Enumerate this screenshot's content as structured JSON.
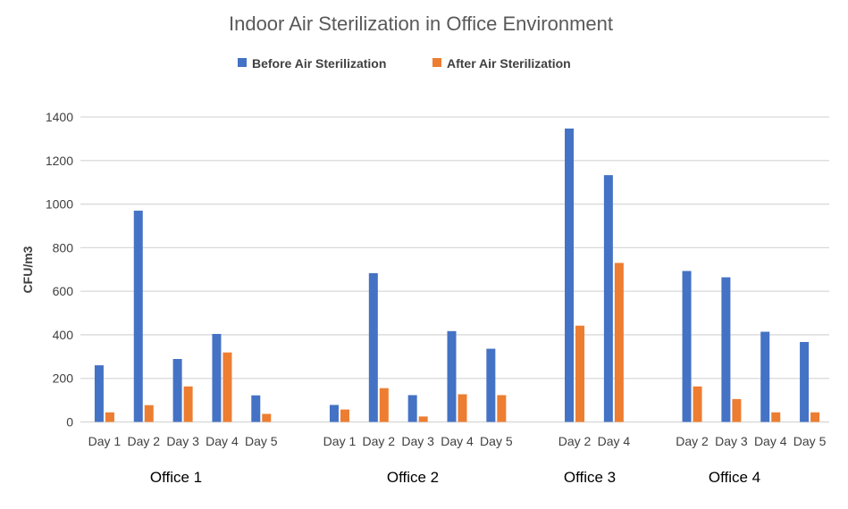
{
  "chart_data": {
    "type": "bar",
    "title": "Indoor Air Sterilization in Office Environment",
    "ylabel": "CFU/m3",
    "xlabel": "",
    "ylim": [
      0,
      1400
    ],
    "yticks": [
      0,
      200,
      400,
      600,
      800,
      1000,
      1200,
      1400
    ],
    "grid": true,
    "legend_position": "top",
    "colors": {
      "before": "#4472C4",
      "after": "#ED7D31"
    },
    "groups": [
      {
        "label": "Office 1",
        "categories": [
          "Day 1",
          "Day 2",
          "Day 3",
          "Day 4",
          "Day 5"
        ],
        "before": [
          260,
          970,
          289,
          404,
          122
        ],
        "after": [
          44,
          77,
          163,
          319,
          37
        ]
      },
      {
        "label": "Office 2",
        "categories": [
          "Day 1",
          "Day 2",
          "Day 3",
          "Day 4",
          "Day 5"
        ],
        "before": [
          78,
          683,
          123,
          417,
          336
        ],
        "after": [
          57,
          155,
          25,
          127,
          123
        ]
      },
      {
        "label": "Office 3",
        "categories": [
          "Day 2",
          "Day 4"
        ],
        "before": [
          1347,
          1133
        ],
        "after": [
          442,
          730
        ]
      },
      {
        "label": "Office 4",
        "categories": [
          "Day 2",
          "Day 3",
          "Day 4",
          "Day 5"
        ],
        "before": [
          693,
          664,
          414,
          367
        ],
        "after": [
          163,
          105,
          44,
          44
        ]
      }
    ],
    "series": [
      {
        "name": "Before Air Sterilization"
      },
      {
        "name": "After Air Sterilization"
      }
    ]
  }
}
